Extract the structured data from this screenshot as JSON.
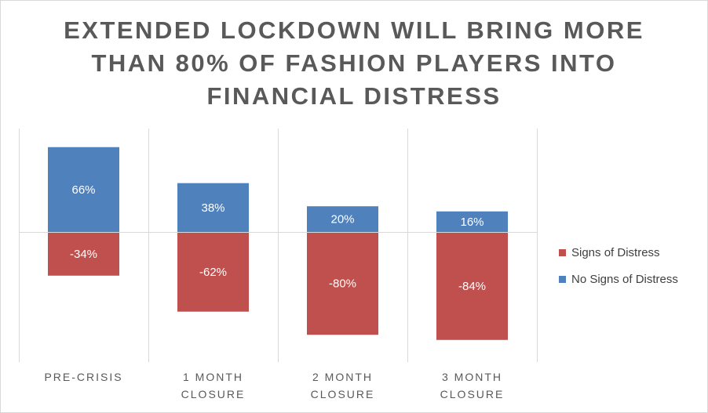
{
  "chart_data": {
    "type": "bar",
    "title": [
      "EXTENDED LOCKDOWN WILL BRING MORE",
      "THAN 80% OF FASHION PLAYERS INTO",
      "FINANCIAL DISTRESS"
    ],
    "categories": [
      [
        "PRE-CRISIS"
      ],
      [
        "1 MONTH",
        "CLOSURE"
      ],
      [
        "2 MONTH",
        "CLOSURE"
      ],
      [
        "3 MONTH",
        "CLOSURE"
      ]
    ],
    "series": [
      {
        "name": "Signs of Distress",
        "color": "#c0504d",
        "values": [
          -34,
          -62,
          -80,
          -84
        ],
        "labels": [
          "-34%",
          "-62%",
          "-80%",
          "-84%"
        ]
      },
      {
        "name": "No Signs of Distress",
        "color": "#4f81bd",
        "values": [
          66,
          38,
          20,
          16
        ],
        "labels": [
          "66%",
          "38%",
          "20%",
          "16%"
        ]
      }
    ],
    "ylim": [
      -100,
      80
    ],
    "stacked": true,
    "legend": "right",
    "grid": "vertical category separators"
  }
}
